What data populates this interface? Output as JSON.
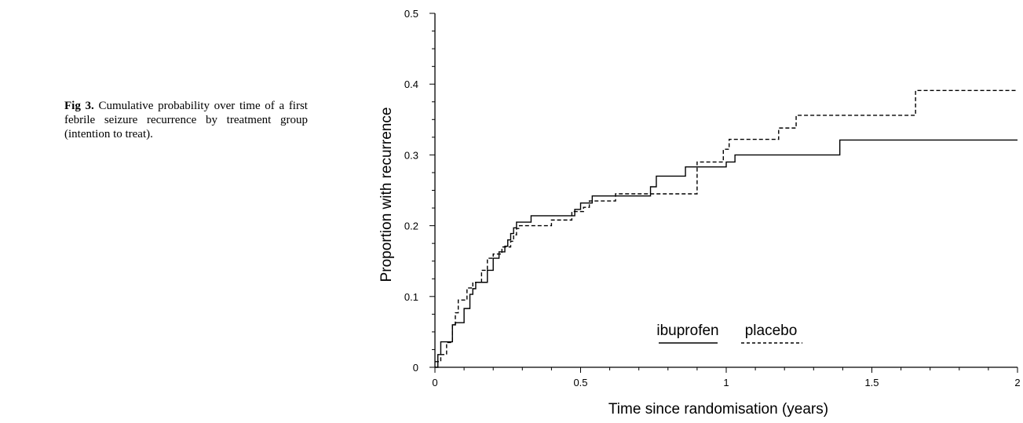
{
  "caption": {
    "label": "Fig 3.",
    "text": " Cumulative probability over time of a first febrile seizure recurrence by treatment group (intention to treat)."
  },
  "chart_data": {
    "type": "line",
    "step": true,
    "xlabel": "Time since randomisation (years)",
    "ylabel": "Proportion with recurrence",
    "xlim": [
      0,
      2
    ],
    "ylim": [
      0,
      0.5
    ],
    "xticks": [
      0,
      0.5,
      1,
      1.5,
      2
    ],
    "xtick_labels": [
      "0",
      "0.5",
      "1",
      "1.5",
      "2"
    ],
    "yticks": [
      0,
      0.1,
      0.2,
      0.3,
      0.4,
      0.5
    ],
    "ytick_labels": [
      "0",
      "0.1",
      "0.2",
      "0.3",
      "0.4",
      "0.5"
    ],
    "grid": false,
    "legend_position": "bottom-center",
    "colors": {
      "line": "#000000"
    },
    "series": [
      {
        "name": "ibuprofen",
        "style": "solid",
        "x": [
          0,
          0.01,
          0.02,
          0.04,
          0.06,
          0.07,
          0.1,
          0.12,
          0.13,
          0.14,
          0.15,
          0.18,
          0.2,
          0.22,
          0.24,
          0.25,
          0.26,
          0.27,
          0.28,
          0.33,
          0.48,
          0.5,
          0.54,
          0.74,
          0.76,
          0.8,
          0.86,
          1.0,
          1.03,
          1.39,
          2.0
        ],
        "y": [
          0,
          0.018,
          0.036,
          0.036,
          0.06,
          0.063,
          0.083,
          0.103,
          0.111,
          0.12,
          0.12,
          0.137,
          0.154,
          0.163,
          0.171,
          0.18,
          0.189,
          0.197,
          0.205,
          0.214,
          0.223,
          0.232,
          0.242,
          0.255,
          0.27,
          0.27,
          0.283,
          0.29,
          0.3,
          0.321,
          0.321
        ]
      },
      {
        "name": "placebo",
        "style": "dashed",
        "x": [
          0,
          0.02,
          0.04,
          0.06,
          0.07,
          0.08,
          0.11,
          0.13,
          0.16,
          0.18,
          0.19,
          0.2,
          0.23,
          0.26,
          0.27,
          0.28,
          0.29,
          0.4,
          0.47,
          0.51,
          0.53,
          0.62,
          0.75,
          0.77,
          0.9,
          0.92,
          0.99,
          1.01,
          1.03,
          1.18,
          1.21,
          1.24,
          1.65,
          2.0
        ],
        "y": [
          0.008,
          0.018,
          0.035,
          0.06,
          0.077,
          0.095,
          0.112,
          0.12,
          0.137,
          0.154,
          0.154,
          0.16,
          0.17,
          0.178,
          0.187,
          0.196,
          0.2,
          0.208,
          0.22,
          0.226,
          0.235,
          0.245,
          0.245,
          0.245,
          0.29,
          0.29,
          0.308,
          0.322,
          0.322,
          0.338,
          0.338,
          0.356,
          0.391,
          0.391
        ]
      }
    ]
  }
}
